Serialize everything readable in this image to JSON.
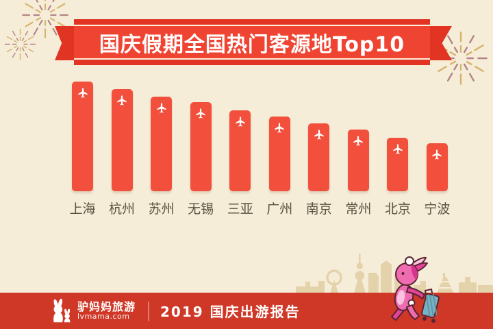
{
  "banner": {
    "title": "国庆假期全国热门客源地Top10"
  },
  "chart_data": {
    "type": "bar",
    "title": "国庆假期全国热门客源地Top10",
    "categories": [
      "上海",
      "杭州",
      "苏州",
      "无锡",
      "三亚",
      "广州",
      "南京",
      "常州",
      "北京",
      "宁波"
    ],
    "values": [
      100,
      93,
      86,
      81,
      74,
      68,
      62,
      56,
      49,
      44
    ],
    "xlabel": "",
    "ylabel": "",
    "ylim": [
      0,
      100
    ],
    "grid": false,
    "legend": "none",
    "note": "No numeric axis or data labels are shown in the image; values are relative bar heights with the tallest bar (上海) = 100.",
    "bar_color": "#f2503c",
    "bar_icon": "airplane-icon"
  },
  "footer": {
    "logo_name": "驴妈妈旅游",
    "logo_domain": "lvmama.com",
    "report_title": "2019 国庆出游报告"
  },
  "icons": {
    "bar_top": "airplane-icon",
    "corner_decorations": "firework-icon",
    "footer_logo": "rabbit-logo-icon",
    "bottom_right": "mascot-rabbit-with-suitcase-icon",
    "background_art": "city-skyline-silhouette"
  },
  "colors": {
    "background": "#f6edd8",
    "banner_red": "#ef4431",
    "banner_edge_red": "#e23423",
    "bar_red": "#f2503c",
    "footer_red": "#cf3726",
    "skyline_tan": "#e4d2ab",
    "label_text": "#5c5142",
    "title_text": "#ffffff",
    "firework_gold": "#d7b36c",
    "firework_mauve": "#b48486",
    "mascot_pink": "#f06cb0",
    "mascot_dark_pink": "#d93390",
    "suitcase_teal": "#79b2c4"
  }
}
